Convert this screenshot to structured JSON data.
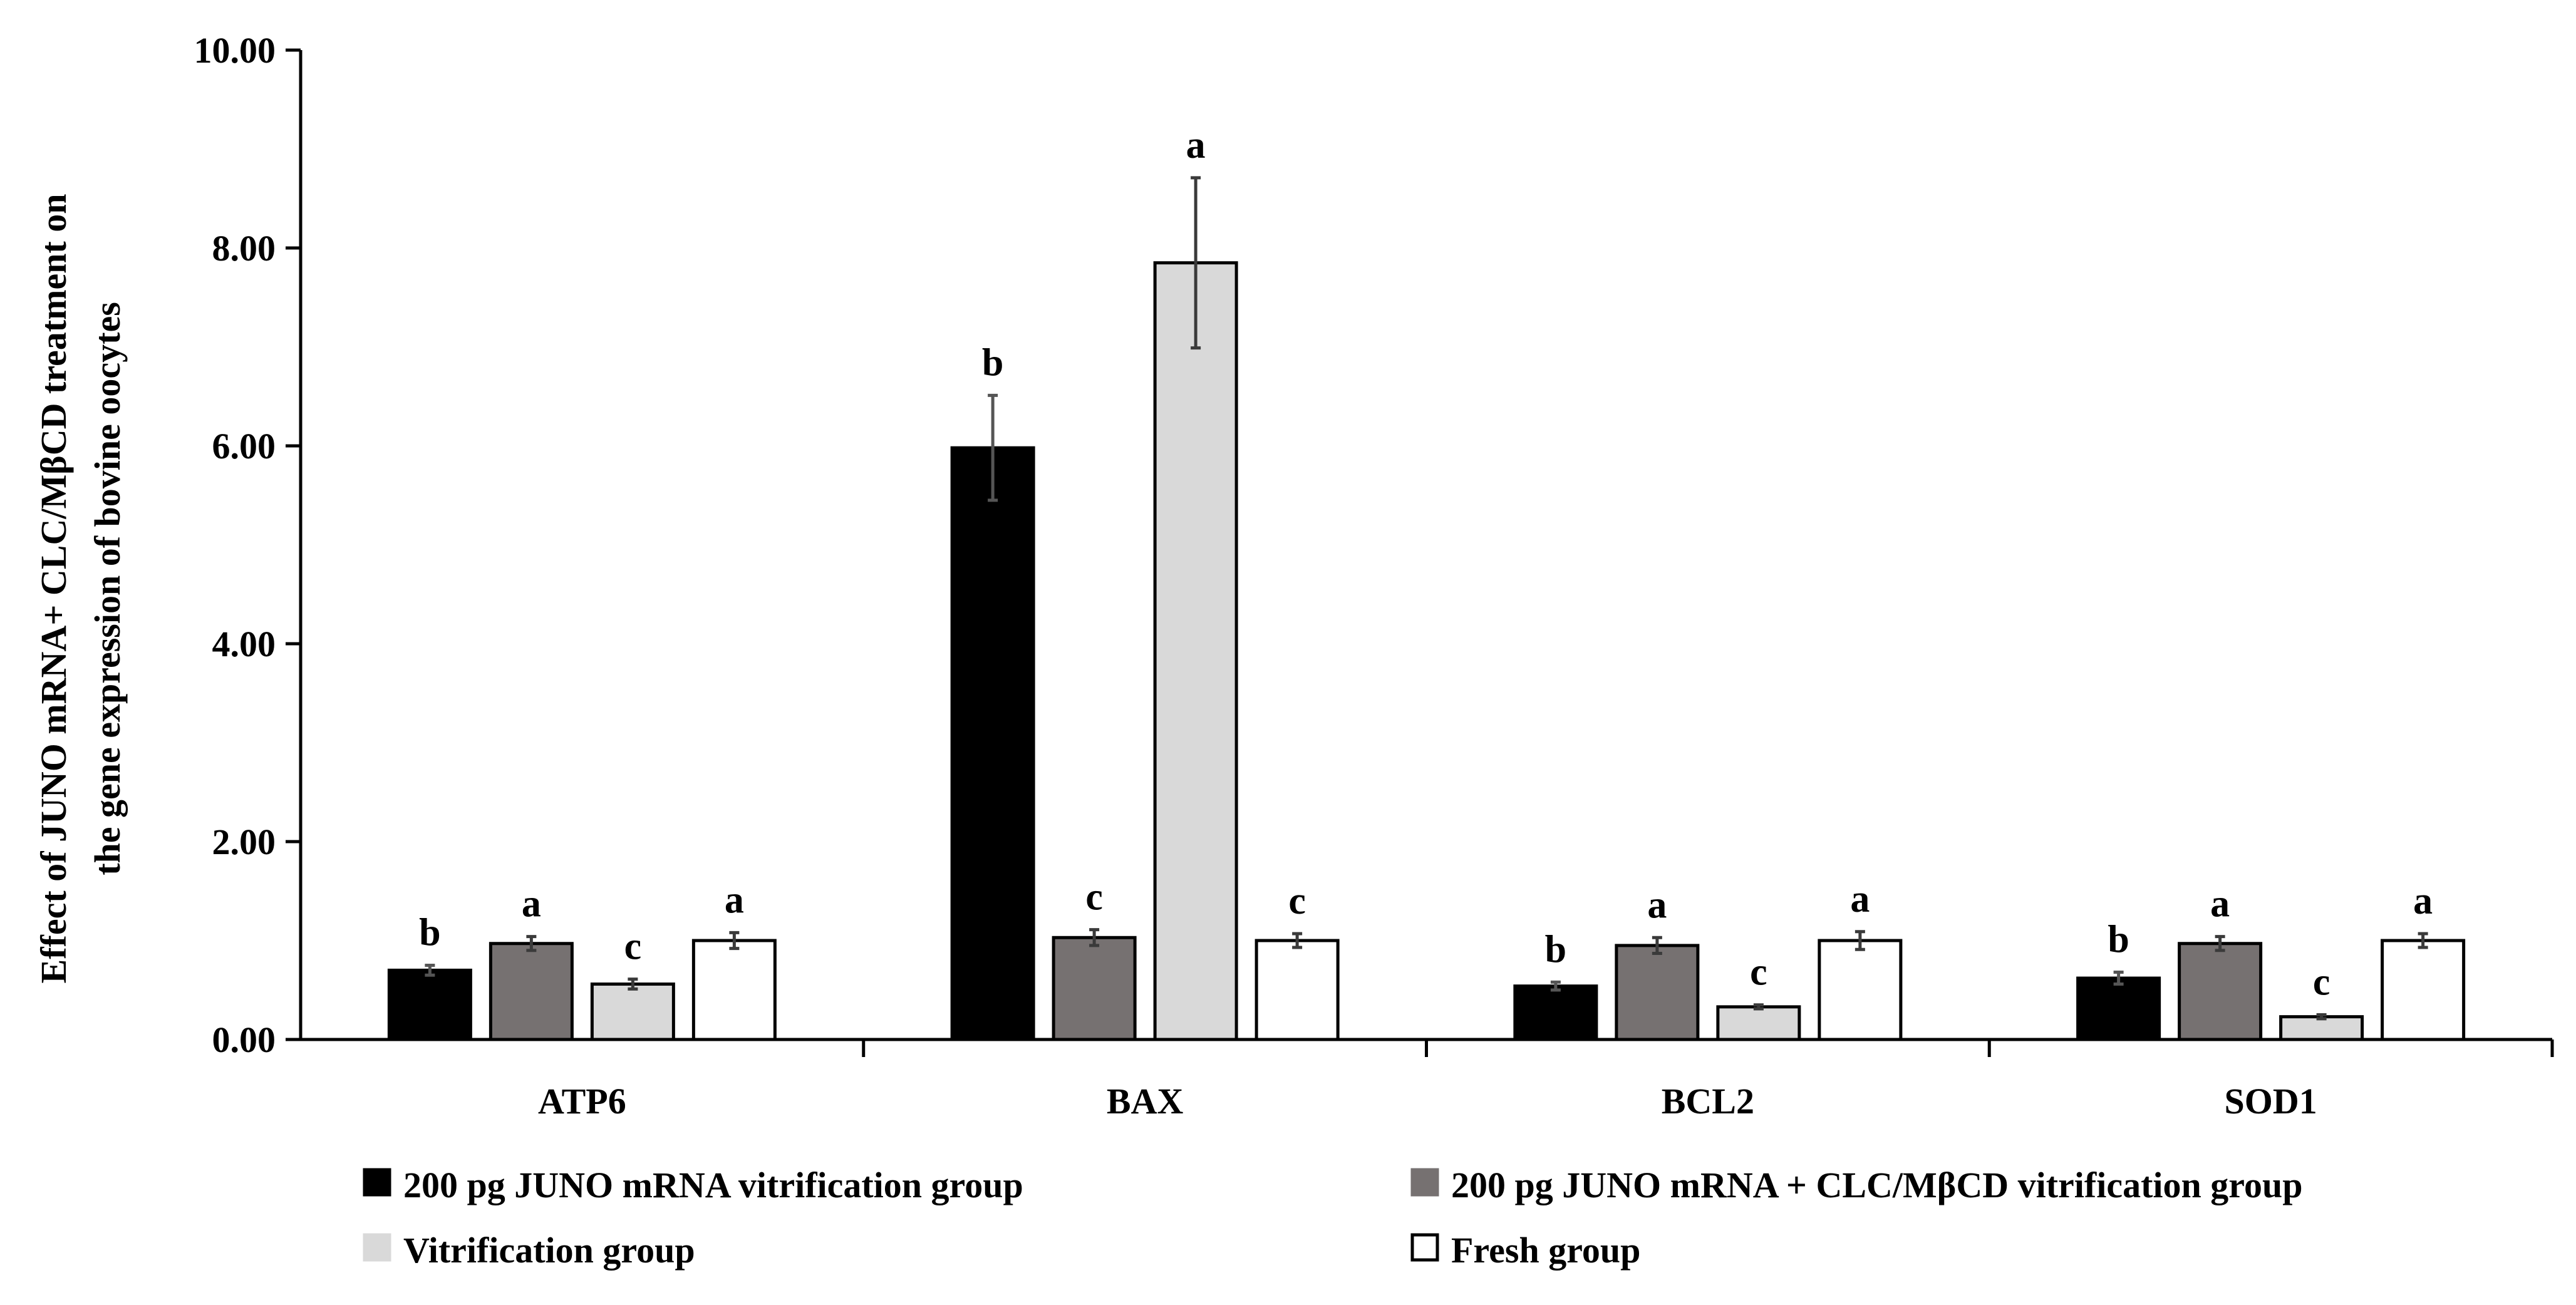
{
  "chart_data": {
    "type": "bar",
    "ylabel_line1": "Effect of JUNO mRNA+ CLC/MβCD treatment on",
    "ylabel_line2": "the gene expression of  bovine oocytes",
    "xlabel": "",
    "ylim": [
      0,
      10
    ],
    "yticks": [
      "0.00",
      "2.00",
      "4.00",
      "6.00",
      "8.00",
      "10.00"
    ],
    "ytick_values": [
      0,
      2,
      4,
      6,
      8,
      10
    ],
    "categories": [
      "ATP6",
      "BAX",
      "BCL2",
      "SOD1"
    ],
    "series": [
      {
        "name": "200 pg  JUNO mRNA vitrification group",
        "fill": "#000000",
        "values": [
          0.7,
          5.98,
          0.54,
          0.62
        ],
        "errors": [
          0.05,
          0.53,
          0.04,
          0.06
        ],
        "letters": [
          "b",
          "b",
          "b",
          "b"
        ]
      },
      {
        "name": "200 pg  JUNO mRNA + CLC/MβCD vitrification group",
        "fill": "#767171",
        "values": [
          0.97,
          1.03,
          0.95,
          0.97
        ],
        "errors": [
          0.07,
          0.08,
          0.08,
          0.07
        ],
        "letters": [
          "a",
          "c",
          "a",
          "a"
        ]
      },
      {
        "name": "Vitrification group",
        "fill": "#d9d9d9",
        "values": [
          0.56,
          7.85,
          0.33,
          0.23
        ],
        "errors": [
          0.05,
          0.86,
          0.02,
          0.02
        ],
        "letters": [
          "c",
          "a",
          "c",
          "c"
        ]
      },
      {
        "name": "Fresh group",
        "fill": "#ffffff",
        "values": [
          1.0,
          1.0,
          1.0,
          1.0
        ],
        "errors": [
          0.08,
          0.07,
          0.09,
          0.07
        ],
        "letters": [
          "a",
          "c",
          "a",
          "a"
        ]
      }
    ],
    "legend_position": "bottom",
    "grid": false
  }
}
